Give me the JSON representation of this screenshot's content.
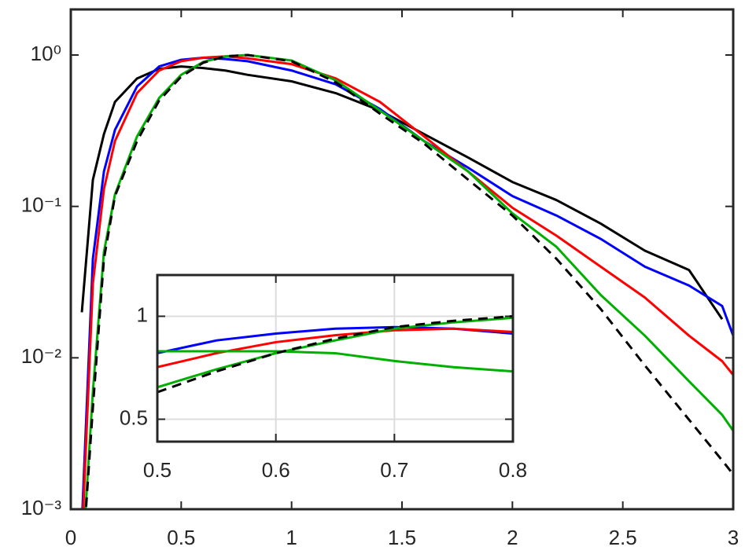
{
  "chart_data": [
    {
      "type": "line",
      "log_y": true,
      "grid": false,
      "x": [
        0.05,
        0.1,
        0.15,
        0.2,
        0.3,
        0.4,
        0.5,
        0.6,
        0.7,
        0.8,
        1.0,
        1.2,
        1.4,
        1.6,
        1.8,
        2.0,
        2.2,
        2.4,
        2.6,
        2.8,
        2.95,
        3.0
      ],
      "series": [
        {
          "color": "#000000",
          "dashed": false,
          "values": [
            0.02,
            0.15,
            0.3,
            0.49,
            0.7,
            0.81,
            0.84,
            0.82,
            0.79,
            0.74,
            0.67,
            0.56,
            0.43,
            0.3,
            0.21,
            0.145,
            0.11,
            0.077,
            0.051,
            0.038,
            0.018,
            null
          ]
        },
        {
          "color": "#0000ff",
          "dashed": false,
          "values": [
            0.0008,
            0.045,
            0.17,
            0.32,
            0.62,
            0.84,
            0.93,
            0.96,
            0.94,
            0.91,
            0.79,
            0.64,
            0.44,
            0.27,
            0.18,
            0.117,
            0.087,
            0.061,
            0.04,
            0.03,
            0.022,
            0.014
          ]
        },
        {
          "color": "#ff0000",
          "dashed": false,
          "values": [
            0.0006,
            0.031,
            0.13,
            0.27,
            0.56,
            0.79,
            0.91,
            0.96,
            0.98,
            0.95,
            0.87,
            0.7,
            0.49,
            0.29,
            0.17,
            0.098,
            0.064,
            0.04,
            0.025,
            0.014,
            0.0095,
            0.0077
          ]
        },
        {
          "color": "#00b000",
          "dashed": false,
          "values": [
            0.0004,
            0.006,
            0.05,
            0.12,
            0.29,
            0.52,
            0.74,
            0.9,
            0.98,
            1.0,
            0.92,
            0.68,
            0.43,
            0.27,
            0.17,
            0.09,
            0.054,
            0.026,
            0.014,
            0.007,
            0.0042,
            0.0033
          ]
        },
        {
          "color": "#000000",
          "dashed": true,
          "values": [
            0.0004,
            0.0047,
            0.045,
            0.117,
            0.27,
            0.5,
            0.72,
            0.89,
            0.98,
            1.0,
            0.91,
            0.66,
            0.41,
            0.26,
            0.15,
            0.087,
            0.045,
            0.021,
            0.0089,
            0.0039,
            0.0021,
            0.0017
          ]
        }
      ],
      "xlim": [
        0,
        3
      ],
      "ylim": [
        0.001,
        2
      ],
      "xticks": [
        0,
        0.5,
        1,
        1.5,
        2,
        2.5,
        3
      ],
      "yticks": [
        {
          "value": 0.001,
          "label": "10⁻³"
        },
        {
          "value": 0.01,
          "label": "10⁻²"
        },
        {
          "value": 0.1,
          "label": "10⁻¹"
        },
        {
          "value": 1,
          "label": "10⁰"
        }
      ]
    },
    {
      "type": "line",
      "log_y": true,
      "grid": true,
      "x": [
        0.5,
        0.55,
        0.6,
        0.65,
        0.7,
        0.75,
        0.8
      ],
      "series": [
        {
          "color": "#0000ff",
          "dashed": false,
          "values": [
            0.78,
            0.85,
            0.89,
            0.92,
            0.93,
            0.92,
            0.89
          ]
        },
        {
          "color": "#ff0000",
          "dashed": false,
          "values": [
            0.71,
            0.78,
            0.84,
            0.88,
            0.91,
            0.92,
            0.9
          ]
        },
        {
          "color": "#00b000",
          "dashed": false,
          "values": [
            0.79,
            0.79,
            0.79,
            0.78,
            0.74,
            0.71,
            0.69
          ]
        },
        {
          "color": "#00b000",
          "dashed": false,
          "values": [
            0.62,
            0.7,
            0.78,
            0.85,
            0.92,
            0.96,
            0.99
          ]
        },
        {
          "color": "#000000",
          "dashed": true,
          "values": [
            0.6,
            0.69,
            0.78,
            0.86,
            0.93,
            0.97,
            1.0
          ]
        }
      ],
      "xlim": [
        0.5,
        0.8
      ],
      "ylim": [
        0.43,
        1.32
      ],
      "xticks": [
        0.5,
        0.6,
        0.7,
        0.8
      ],
      "yticks": [
        0.5,
        1
      ]
    }
  ]
}
